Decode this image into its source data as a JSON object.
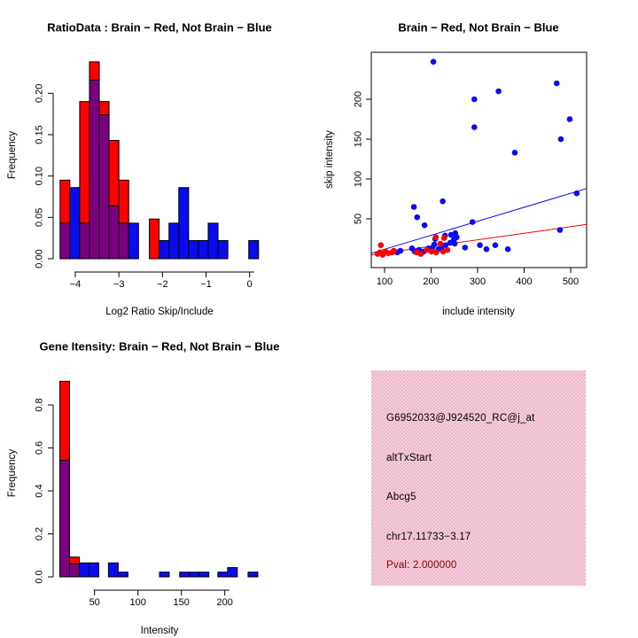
{
  "colors": {
    "red": "#ff0000",
    "blue": "#0b0bf0",
    "purple": "#7a0080",
    "black": "#000000",
    "pval_text": "#8b0000",
    "panel_pink": "#ffaec9",
    "panel_gray": "#dfdde2"
  },
  "panels": {
    "info": {
      "probe_id": "G6952033@J924520_RC@j_at",
      "event_type": "altTxStart",
      "gene": "Abcg5",
      "location": "chr17.11733−3.17",
      "pval": "Pval: 2.000000"
    }
  },
  "chart_data": [
    {
      "type": "bar",
      "title": "RatioData : Brain − Red, Not Brain − Blue",
      "xlabel": "Log2 Ratio Skip/Include",
      "ylabel": "Frequency",
      "legend_meaning": {
        "red": "Brain",
        "blue": "Not Brain",
        "purple": "overlap of red and blue"
      },
      "xlim": [
        -4.52,
        0.55
      ],
      "ylim": [
        0,
        0.25
      ],
      "xticks": [
        -4,
        -3,
        -2,
        -1,
        0
      ],
      "xtick_labels": [
        "−4",
        "−3",
        "−2",
        "−1",
        "0"
      ],
      "yticks": [
        0,
        0.05,
        0.1,
        0.15,
        0.2
      ],
      "ytick_labels": [
        "0.00",
        "0.05",
        "0.10",
        "0.15",
        "0.20"
      ],
      "grid": false,
      "bar_width": 0.225,
      "bars": [
        {
          "x": -4.35,
          "stack": [
            [
              "purple",
              0.043
            ],
            [
              "red",
              0.095
            ]
          ]
        },
        {
          "x": -4.125,
          "stack": [
            [
              "blue",
              0.086
            ]
          ]
        },
        {
          "x": -3.9,
          "stack": [
            [
              "purple",
              0.043
            ],
            [
              "red",
              0.19
            ]
          ]
        },
        {
          "x": -3.675,
          "stack": [
            [
              "purple",
              0.216
            ],
            [
              "red",
              0.238
            ]
          ]
        },
        {
          "x": -3.45,
          "stack": [
            [
              "purple",
              0.174
            ],
            [
              "red",
              0.19
            ]
          ]
        },
        {
          "x": -3.225,
          "stack": [
            [
              "purple",
              0.064
            ],
            [
              "red",
              0.143
            ]
          ]
        },
        {
          "x": -3.0,
          "stack": [
            [
              "purple",
              0.043
            ],
            [
              "red",
              0.095
            ]
          ]
        },
        {
          "x": -2.775,
          "stack": [
            [
              "blue",
              0.043
            ]
          ]
        },
        {
          "x": -2.3,
          "stack": [
            [
              "red",
              0.048
            ]
          ]
        },
        {
          "x": -2.075,
          "stack": [
            [
              "blue",
              0.022
            ]
          ]
        },
        {
          "x": -1.85,
          "stack": [
            [
              "blue",
              0.043
            ]
          ]
        },
        {
          "x": -1.625,
          "stack": [
            [
              "blue",
              0.086
            ]
          ]
        },
        {
          "x": -1.4,
          "stack": [
            [
              "blue",
              0.022
            ]
          ]
        },
        {
          "x": -1.175,
          "stack": [
            [
              "blue",
              0.022
            ]
          ]
        },
        {
          "x": -0.95,
          "stack": [
            [
              "blue",
              0.043
            ]
          ]
        },
        {
          "x": -0.725,
          "stack": [
            [
              "blue",
              0.022
            ]
          ]
        },
        {
          "x": -0.02,
          "stack": [
            [
              "blue",
              0.022
            ]
          ]
        }
      ]
    },
    {
      "type": "scatter",
      "title": "Brain − Red, Not Brain − Blue",
      "xlabel": "include intensity",
      "ylabel": "skip intensity",
      "xlim": [
        70,
        535
      ],
      "ylim": [
        -8,
        262
      ],
      "xticks": [
        100,
        200,
        300,
        400,
        500
      ],
      "yticks": [
        50,
        100,
        150,
        200
      ],
      "grid": false,
      "lines": [
        {
          "color": "blue",
          "x": [
            72,
            534
          ],
          "y": [
            7,
            88
          ]
        },
        {
          "color": "red",
          "x": [
            72,
            534
          ],
          "y": [
            5,
            43
          ]
        }
      ],
      "series": [
        {
          "name": "Not Brain",
          "color": "blue",
          "points": [
            [
              205,
              247
            ],
            [
              293,
              200
            ],
            [
              345,
              210
            ],
            [
              470,
              220
            ],
            [
              293,
              165
            ],
            [
              498,
              175
            ],
            [
              479,
              150
            ],
            [
              380,
              133
            ],
            [
              513,
              82
            ],
            [
              225,
              72
            ],
            [
              163,
              65
            ],
            [
              170,
              52
            ],
            [
              186,
              42
            ],
            [
              289,
              46
            ],
            [
              477,
              36
            ],
            [
              243,
              30
            ],
            [
              252,
              32
            ],
            [
              209,
              25
            ],
            [
              230,
              29
            ],
            [
              241,
              20
            ],
            [
              249,
              24
            ],
            [
              251,
              19
            ],
            [
              255,
              27
            ],
            [
              273,
              14
            ],
            [
              305,
              17
            ],
            [
              319,
              12
            ],
            [
              338,
              17
            ],
            [
              365,
              12
            ],
            [
              127,
              8
            ],
            [
              134,
              10
            ],
            [
              159,
              13
            ],
            [
              165,
              9
            ],
            [
              174,
              11
            ],
            [
              184,
              9
            ],
            [
              194,
              13
            ],
            [
              203,
              14
            ],
            [
              216,
              12
            ],
            [
              222,
              13
            ],
            [
              231,
              17
            ],
            [
              207,
              18
            ]
          ]
        },
        {
          "name": "Brain",
          "color": "red",
          "points": [
            [
              92,
              17
            ],
            [
              85,
              6
            ],
            [
              90,
              8
            ],
            [
              96,
              5
            ],
            [
              102,
              9
            ],
            [
              108,
              7
            ],
            [
              116,
              8
            ],
            [
              120,
              10
            ],
            [
              169,
              8
            ],
            [
              178,
              6
            ],
            [
              191,
              11
            ],
            [
              201,
              9
            ],
            [
              211,
              8
            ],
            [
              220,
              19
            ],
            [
              226,
              9
            ],
            [
              235,
              11
            ],
            [
              210,
              27
            ],
            [
              228,
              26
            ]
          ]
        }
      ]
    },
    {
      "type": "bar",
      "title": "Gene Itensity: Brain − Red, Not Brain − Blue",
      "xlabel": "Intensity",
      "ylabel": "Frequency",
      "legend_meaning": {
        "red": "Brain",
        "blue": "Not Brain",
        "purple": "overlap of red and blue"
      },
      "xlim": [
        2,
        257
      ],
      "ylim": [
        0,
        0.97
      ],
      "xticks": [
        50,
        100,
        150,
        200
      ],
      "xtick_labels": [
        "50",
        "100",
        "150",
        "200"
      ],
      "yticks": [
        0,
        0.2,
        0.4,
        0.6,
        0.8
      ],
      "ytick_labels": [
        "0.0",
        "0.2",
        "0.4",
        "0.6",
        "0.8"
      ],
      "grid": false,
      "bar_width": 11.2,
      "bars": [
        {
          "x": 10,
          "stack": [
            [
              "purple",
              0.543
            ],
            [
              "red",
              0.91
            ]
          ]
        },
        {
          "x": 21.2,
          "stack": [
            [
              "purple",
              0.06
            ],
            [
              "red",
              0.092
            ]
          ]
        },
        {
          "x": 32.4,
          "stack": [
            [
              "blue",
              0.065
            ]
          ]
        },
        {
          "x": 43.6,
          "stack": [
            [
              "blue",
              0.065
            ]
          ]
        },
        {
          "x": 66,
          "stack": [
            [
              "blue",
              0.065
            ]
          ]
        },
        {
          "x": 77.2,
          "stack": [
            [
              "blue",
              0.022
            ]
          ]
        },
        {
          "x": 124.8,
          "stack": [
            [
              "blue",
              0.022
            ]
          ]
        },
        {
          "x": 148,
          "stack": [
            [
              "blue",
              0.022
            ]
          ]
        },
        {
          "x": 159.2,
          "stack": [
            [
              "blue",
              0.022
            ]
          ]
        },
        {
          "x": 170.4,
          "stack": [
            [
              "blue",
              0.022
            ]
          ]
        },
        {
          "x": 192,
          "stack": [
            [
              "blue",
              0.022
            ]
          ]
        },
        {
          "x": 203.2,
          "stack": [
            [
              "blue",
              0.043
            ]
          ]
        },
        {
          "x": 226.8,
          "stack": [
            [
              "blue",
              0.022
            ]
          ]
        }
      ]
    }
  ]
}
